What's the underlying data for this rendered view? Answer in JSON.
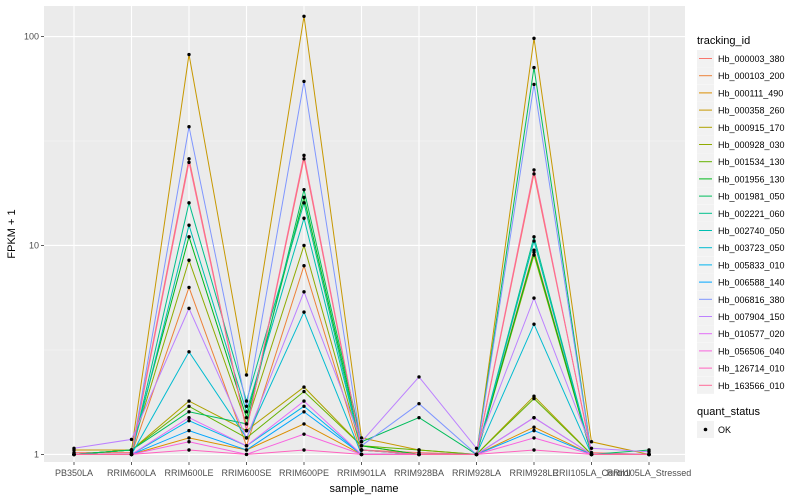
{
  "chart_data": {
    "type": "line",
    "title": "",
    "xlabel": "sample_name",
    "ylabel": "FPKM + 1",
    "y_scale": "log10",
    "ylim": [
      0.92,
      140
    ],
    "y_ticks": [
      1,
      10,
      100
    ],
    "y_tick_labels": [
      "1",
      "10",
      "100"
    ],
    "grid": true,
    "background": "#ebebeb",
    "grid_color": "#ffffff",
    "legend_position": "right",
    "categories": [
      "PB350LA",
      "RRIM600LA",
      "RRIM600LE",
      "RRIM600SE",
      "RRIM600PE",
      "RRIM901LA",
      "RRIM928BA",
      "RRIM928LA",
      "RRIM928LE",
      "RRII105LA_Control",
      "RRII105LA_Stressed"
    ],
    "legend_title": "tracking_id",
    "series": [
      {
        "name": "Hb_000003_380",
        "color": "#F8766D",
        "values": [
          1.02,
          1.02,
          26,
          1.3,
          26,
          1.05,
          1.02,
          1.0,
          22,
          1.02,
          1.0
        ]
      },
      {
        "name": "Hb_000103_200",
        "color": "#EC8239",
        "values": [
          1.0,
          1.0,
          6.3,
          1.1,
          8,
          1.0,
          1.0,
          1.0,
          9.5,
          1.0,
          1.0
        ]
      },
      {
        "name": "Hb_000111_490",
        "color": "#DB8E00",
        "values": [
          1.0,
          1.0,
          1.2,
          1.05,
          1.4,
          1.0,
          1.0,
          1.0,
          1.35,
          1.0,
          1.0
        ]
      },
      {
        "name": "Hb_000358_260",
        "color": "#C79800",
        "values": [
          1.05,
          1.05,
          82,
          2.4,
          125,
          1.2,
          1.05,
          1.0,
          98,
          1.15,
          1.0
        ]
      },
      {
        "name": "Hb_000915_170",
        "color": "#AEA200",
        "values": [
          1.0,
          1.05,
          1.8,
          1.3,
          2.1,
          1.1,
          1.0,
          1.0,
          1.9,
          1.0,
          1.0
        ]
      },
      {
        "name": "Hb_000928_030",
        "color": "#8FAA00",
        "values": [
          1.0,
          1.05,
          8.5,
          1.4,
          10,
          1.05,
          1.0,
          1.0,
          9,
          1.0,
          1.0
        ]
      },
      {
        "name": "Hb_001534_130",
        "color": "#64B200",
        "values": [
          1.0,
          1.05,
          1.7,
          1.2,
          2.0,
          1.1,
          1.05,
          1.0,
          1.85,
          1.0,
          1.0
        ]
      },
      {
        "name": "Hb_001956_130",
        "color": "#00B81B",
        "values": [
          1.0,
          1.05,
          11,
          1.5,
          17,
          1.1,
          1.0,
          1.0,
          9.3,
          1.0,
          1.0
        ]
      },
      {
        "name": "Hb_001981_050",
        "color": "#00BD5C",
        "values": [
          1.0,
          1.05,
          1.6,
          1.4,
          18.5,
          1.15,
          1.5,
          1.0,
          71,
          1.0,
          1.05
        ]
      },
      {
        "name": "Hb_002221_060",
        "color": "#00C08B",
        "values": [
          1.0,
          1.0,
          16,
          1.8,
          16,
          1.05,
          1.0,
          1.0,
          11,
          1.0,
          1.0
        ]
      },
      {
        "name": "Hb_002740_050",
        "color": "#00BFB1",
        "values": [
          1.0,
          1.0,
          12.5,
          1.6,
          13.5,
          1.05,
          1.0,
          1.0,
          10.5,
          1.0,
          1.0
        ]
      },
      {
        "name": "Hb_003723_050",
        "color": "#00BBD0",
        "values": [
          1.0,
          1.0,
          3.1,
          1.2,
          4.8,
          1.0,
          1.0,
          1.0,
          4.2,
          1.0,
          1.0
        ]
      },
      {
        "name": "Hb_005833_010",
        "color": "#00B4EF",
        "values": [
          1.0,
          1.0,
          1.45,
          1.1,
          1.7,
          1.0,
          1.0,
          1.0,
          1.5,
          1.0,
          1.0
        ]
      },
      {
        "name": "Hb_006588_140",
        "color": "#00A5FF",
        "values": [
          1.0,
          1.0,
          1.3,
          1.05,
          1.6,
          1.0,
          1.0,
          1.0,
          1.3,
          1.0,
          1.0
        ]
      },
      {
        "name": "Hb_006816_380",
        "color": "#7F96FF",
        "values": [
          1.0,
          1.0,
          37,
          1.7,
          61,
          1.1,
          1.75,
          1.0,
          59,
          1.0,
          1.0
        ]
      },
      {
        "name": "Hb_007904_150",
        "color": "#BC81FF",
        "values": [
          1.07,
          1.18,
          5.0,
          1.2,
          6.0,
          1.15,
          2.35,
          1.07,
          5.6,
          1.07,
          1.03
        ]
      },
      {
        "name": "Hb_010577_020",
        "color": "#E26EF7",
        "values": [
          1.0,
          1.0,
          1.5,
          1.1,
          1.8,
          1.0,
          1.0,
          1.0,
          1.5,
          1.0,
          1.0
        ]
      },
      {
        "name": "Hb_056506_040",
        "color": "#F863DF",
        "values": [
          1.0,
          1.0,
          1.15,
          1.0,
          1.25,
          1.0,
          1.0,
          1.0,
          1.2,
          1.0,
          1.0
        ]
      },
      {
        "name": "Hb_126714_010",
        "color": "#FF62BF",
        "values": [
          1.0,
          1.0,
          1.05,
          1.0,
          1.05,
          1.0,
          1.0,
          1.0,
          1.05,
          1.0,
          1.0
        ]
      },
      {
        "name": "Hb_163566_010",
        "color": "#FF6A98",
        "values": [
          1.0,
          1.0,
          25,
          1.3,
          27,
          1.05,
          1.0,
          1.0,
          23,
          1.0,
          1.0
        ]
      }
    ],
    "point_legend": {
      "title": "quant_status",
      "label": "OK",
      "color": "#000000"
    }
  }
}
